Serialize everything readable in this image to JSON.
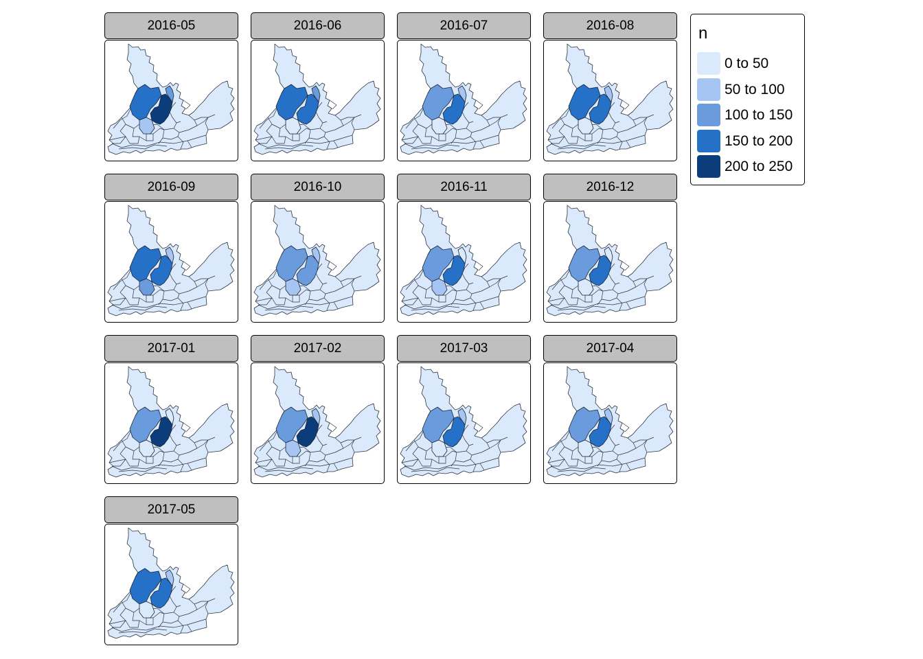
{
  "legend": {
    "title": "n",
    "classes": [
      {
        "label": "0 to 50",
        "color": "#dbe9fc"
      },
      {
        "label": "50 to 100",
        "color": "#a6c5f2"
      },
      {
        "label": "100 to 150",
        "color": "#6a9bdc"
      },
      {
        "label": "150 to 200",
        "color": "#2571c8"
      },
      {
        "label": "200 to 250",
        "color": "#0b3d7b"
      }
    ]
  },
  "facets": [
    {
      "label": "2016-05",
      "north": 3,
      "west_center": 1,
      "center": 4,
      "east_center": 2
    },
    {
      "label": "2016-06",
      "north": 3,
      "west_center": 0,
      "center": 3,
      "east_center": 2
    },
    {
      "label": "2016-07",
      "north": 2,
      "west_center": 0,
      "center": 3,
      "east_center": 1
    },
    {
      "label": "2016-08",
      "north": 3,
      "west_center": 0,
      "center": 3,
      "east_center": 1
    },
    {
      "label": "2016-09",
      "north": 3,
      "west_center": 2,
      "center": 3,
      "east_center": 1
    },
    {
      "label": "2016-10",
      "north": 2,
      "west_center": 1,
      "center": 2,
      "east_center": 1
    },
    {
      "label": "2016-11",
      "north": 2,
      "west_center": 1,
      "center": 3,
      "east_center": 0
    },
    {
      "label": "2016-12",
      "north": 2,
      "west_center": 0,
      "center": 3,
      "east_center": 0
    },
    {
      "label": "2017-01",
      "north": 2,
      "west_center": 0,
      "center": 4,
      "east_center": 0
    },
    {
      "label": "2017-02",
      "north": 2,
      "west_center": 1,
      "center": 4,
      "east_center": 1
    },
    {
      "label": "2017-03",
      "north": 2,
      "west_center": 0,
      "center": 3,
      "east_center": 1
    },
    {
      "label": "2017-04",
      "north": 2,
      "west_center": 0,
      "center": 3,
      "east_center": 1
    },
    {
      "label": "2017-05",
      "north": 3,
      "west_center": 0,
      "center": 3,
      "east_center": 1
    }
  ]
}
